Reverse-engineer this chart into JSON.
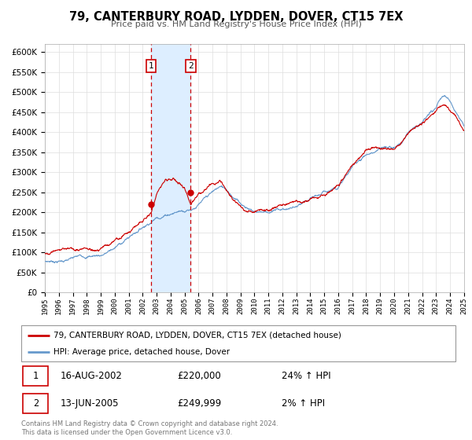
{
  "title": "79, CANTERBURY ROAD, LYDDEN, DOVER, CT15 7EX",
  "subtitle": "Price paid vs. HM Land Registry's House Price Index (HPI)",
  "legend_label_red": "79, CANTERBURY ROAD, LYDDEN, DOVER, CT15 7EX (detached house)",
  "legend_label_blue": "HPI: Average price, detached house, Dover",
  "sale1_date": "16-AUG-2002",
  "sale1_price": "£220,000",
  "sale1_hpi": "24% ↑ HPI",
  "sale1_year": 2002.62,
  "sale1_value": 220000,
  "sale2_date": "13-JUN-2005",
  "sale2_price": "£249,999",
  "sale2_hpi": "2% ↑ HPI",
  "sale2_year": 2005.44,
  "sale2_value": 249999,
  "footer": "Contains HM Land Registry data © Crown copyright and database right 2024.\nThis data is licensed under the Open Government Licence v3.0.",
  "ylim": [
    0,
    620000
  ],
  "xlim_start": 1995,
  "xlim_end": 2025,
  "highlight_start": 2002.62,
  "highlight_end": 2005.44,
  "color_red": "#cc0000",
  "color_blue": "#6699cc",
  "color_highlight": "#ddeeff",
  "color_dashed": "#cc0000",
  "color_grid": "#dddddd",
  "bg_color": "#ffffff"
}
